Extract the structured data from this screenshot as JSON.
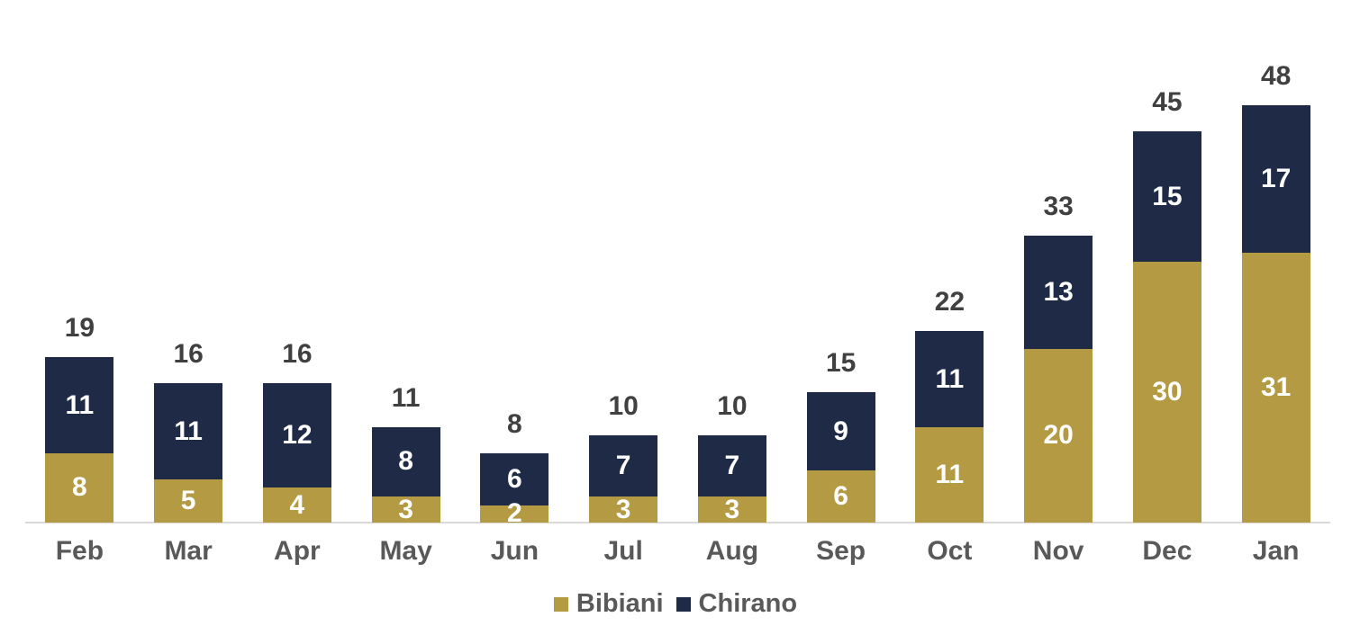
{
  "chart_data": {
    "type": "bar",
    "stacked": true,
    "categories": [
      "Feb",
      "Mar",
      "Apr",
      "May",
      "Jun",
      "Jul",
      "Aug",
      "Sep",
      "Oct",
      "Nov",
      "Dec",
      "Jan"
    ],
    "series": [
      {
        "name": "Bibiani",
        "color": "#B39A43",
        "values": [
          8,
          5,
          4,
          3,
          2,
          3,
          3,
          6,
          11,
          20,
          30,
          31
        ]
      },
      {
        "name": "Chirano",
        "color": "#1F2B46",
        "values": [
          11,
          11,
          12,
          8,
          6,
          7,
          7,
          9,
          11,
          13,
          15,
          17
        ]
      }
    ],
    "totals": [
      19,
      16,
      16,
      11,
      8,
      10,
      10,
      15,
      22,
      33,
      45,
      48
    ],
    "title": "",
    "xlabel": "",
    "ylabel": "",
    "ylim": [
      0,
      48
    ],
    "grid": false,
    "axis_line": "x-only",
    "legend_position": "bottom-center",
    "data_labels": "inside-center-white",
    "total_labels": "above-bar"
  },
  "colors": {
    "background": "#FFFFFF",
    "bibiani": "#B39A43",
    "chirano": "#1F2B46",
    "total_label": "#404040",
    "month_label": "#595959",
    "segment_label": "#FFFFFF",
    "baseline": "#D9D9D9"
  }
}
